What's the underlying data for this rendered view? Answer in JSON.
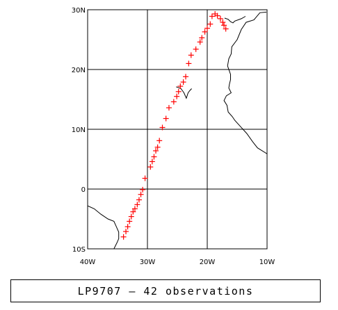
{
  "caption": "LP9707 — 42 observations",
  "map": {
    "projection": "equirectangular",
    "lon_range": [
      -40,
      -10
    ],
    "lat_range": [
      -10,
      30
    ],
    "grid": true,
    "x_ticks": [
      {
        "value": -40,
        "label": "40W"
      },
      {
        "value": -30,
        "label": "30W"
      },
      {
        "value": -20,
        "label": "20W"
      },
      {
        "value": -10,
        "label": "10W"
      }
    ],
    "y_ticks": [
      {
        "value": 30,
        "label": "30N"
      },
      {
        "value": 20,
        "label": "20N"
      },
      {
        "value": 10,
        "label": "10N"
      },
      {
        "value": 0,
        "label": "0"
      },
      {
        "value": -10,
        "label": "10S"
      }
    ],
    "marker": "+",
    "marker_color": "#ff0000",
    "grid_color": "#000000",
    "coast_color": "#000000"
  },
  "chart_data": {
    "type": "scatter",
    "title": "LP9707 — 42 observations",
    "xlabel": "",
    "ylabel": "",
    "xlim": [
      -40,
      -10
    ],
    "ylim": [
      -10,
      30
    ],
    "grid": true,
    "series": [
      {
        "x": [
          -34.0,
          -33.6,
          -33.3,
          -33.0,
          -32.7,
          -32.4,
          -32.1,
          -31.7,
          -31.4,
          -31.1,
          -30.8,
          -30.4,
          -29.5,
          -29.2,
          -28.9,
          -28.6,
          -28.3,
          -28.0,
          -27.5,
          -26.9,
          -26.4,
          -25.6,
          -25.1,
          -24.8,
          -24.5,
          -24.0,
          -23.6,
          -23.1,
          -22.7,
          -21.9,
          -21.2,
          -20.9,
          -20.4,
          -20.0,
          -19.5,
          -19.2,
          -18.7,
          -18.3,
          -17.8,
          -17.4,
          -17.2,
          -16.9
        ],
        "y": [
          -8.0,
          -7.1,
          -6.3,
          -5.4,
          -4.6,
          -3.8,
          -3.3,
          -2.6,
          -1.8,
          -0.9,
          -0.1,
          1.8,
          3.7,
          4.6,
          5.4,
          6.4,
          7.0,
          8.1,
          10.3,
          11.8,
          13.6,
          14.6,
          15.5,
          16.3,
          17.2,
          17.9,
          18.8,
          21.0,
          22.4,
          23.4,
          24.6,
          25.3,
          26.3,
          26.9,
          27.6,
          28.9,
          29.3,
          29.0,
          28.5,
          27.9,
          27.4,
          26.8
        ]
      }
    ]
  },
  "coastlines": [
    [
      [
        -40,
        -2.8
      ],
      [
        -38.9,
        -3.3
      ],
      [
        -37.8,
        -4.2
      ],
      [
        -36.6,
        -5.0
      ],
      [
        -35.6,
        -5.4
      ],
      [
        -35.2,
        -6.3
      ],
      [
        -34.8,
        -7.2
      ],
      [
        -34.8,
        -8.3
      ],
      [
        -35.1,
        -9.0
      ],
      [
        -35.6,
        -10
      ]
    ],
    [
      [
        -10.1,
        29.6
      ],
      [
        -11.2,
        29.5
      ],
      [
        -12.2,
        28.3
      ],
      [
        -13.5,
        27.9
      ],
      [
        -14.3,
        26.7
      ],
      [
        -15.0,
        25.0
      ],
      [
        -15.9,
        23.8
      ],
      [
        -16.0,
        22.6
      ],
      [
        -16.4,
        21.8
      ],
      [
        -16.6,
        20.6
      ],
      [
        -16.1,
        19.2
      ],
      [
        -16.1,
        18.3
      ],
      [
        -16.3,
        17.5
      ],
      [
        -16.4,
        16.9
      ],
      [
        -16.0,
        16.1
      ],
      [
        -16.8,
        15.6
      ],
      [
        -17.2,
        14.8
      ],
      [
        -16.7,
        14.0
      ],
      [
        -16.5,
        12.9
      ],
      [
        -15.8,
        12.1
      ],
      [
        -15.4,
        11.5
      ],
      [
        -14.3,
        10.3
      ],
      [
        -13.4,
        9.3
      ],
      [
        -12.4,
        7.9
      ],
      [
        -11.6,
        6.9
      ],
      [
        -10,
        5.9
      ]
    ],
    [
      [
        -25.2,
        17.1
      ],
      [
        -24.9,
        17.0
      ],
      [
        -24.4,
        16.8
      ],
      [
        -23.9,
        16.1
      ],
      [
        -23.5,
        15.2
      ],
      [
        -23.2,
        16.1
      ],
      [
        -22.9,
        16.5
      ],
      [
        -22.6,
        16.8
      ]
    ],
    [
      [
        -17.1,
        28.6
      ],
      [
        -16.5,
        28.4
      ],
      [
        -16.1,
        28.0
      ],
      [
        -15.7,
        27.8
      ],
      [
        -15.4,
        28.1
      ],
      [
        -14.3,
        28.5
      ],
      [
        -13.6,
        28.9
      ]
    ]
  ]
}
